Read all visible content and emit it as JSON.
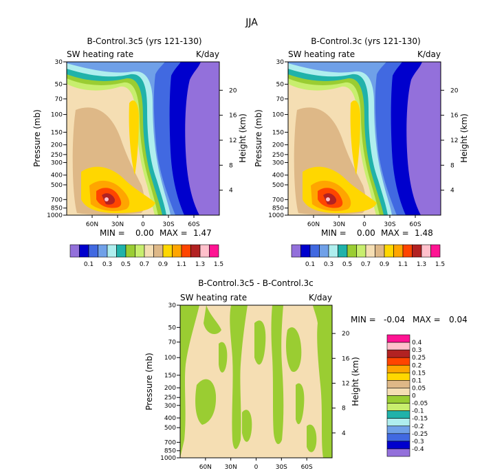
{
  "figure_title": "JJA",
  "chart_data": [
    {
      "type": "heatmap",
      "title": "B-Control.3c5 (yrs 121-130)",
      "left_label": "SW heating rate",
      "right_label": "K/day",
      "ylabel": "Pressure (mb)",
      "ylabel_right": "Height (km)",
      "x_ticks": [
        "60N",
        "30N",
        "0",
        "30S",
        "60S"
      ],
      "y_ticks": [
        "30",
        "50",
        "70",
        "100",
        "150",
        "200",
        "250",
        "300",
        "400",
        "500",
        "700",
        "850",
        "1000"
      ],
      "y_right_ticks": [
        "20",
        "16",
        "12",
        "8",
        "4"
      ],
      "min_label": "MIN =",
      "min_value": "0.00",
      "max_label": "MAX =",
      "max_value": "1.47",
      "colorbar_labels": [
        "0.1",
        "0.3",
        "0.5",
        "0.7",
        "0.9",
        "1.1",
        "1.3",
        "1.5"
      ]
    },
    {
      "type": "heatmap",
      "title": "B-Control.3c (yrs 121-130)",
      "left_label": "SW heating rate",
      "right_label": "K/day",
      "ylabel": "Pressure (mb)",
      "ylabel_right": "Height (km)",
      "x_ticks": [
        "60N",
        "30N",
        "0",
        "30S",
        "60S"
      ],
      "y_ticks": [
        "30",
        "50",
        "70",
        "100",
        "150",
        "200",
        "250",
        "300",
        "400",
        "500",
        "700",
        "850",
        "1000"
      ],
      "y_right_ticks": [
        "20",
        "16",
        "12",
        "8",
        "4"
      ],
      "min_label": "MIN =",
      "min_value": "0.00",
      "max_label": "MAX =",
      "max_value": "1.48",
      "colorbar_labels": [
        "0.1",
        "0.3",
        "0.5",
        "0.7",
        "0.9",
        "1.1",
        "1.3",
        "1.5"
      ]
    },
    {
      "type": "heatmap",
      "title": "B-Control.3c5 - B-Control.3c",
      "left_label": "SW heating rate",
      "right_label": "K/day",
      "ylabel": "Pressure (mb)",
      "ylabel_right": "Height (km)",
      "x_ticks": [
        "60N",
        "30N",
        "0",
        "30S",
        "60S"
      ],
      "y_ticks": [
        "30",
        "50",
        "70",
        "100",
        "150",
        "200",
        "250",
        "300",
        "400",
        "500",
        "700",
        "850",
        "1000"
      ],
      "y_right_ticks": [
        "20",
        "16",
        "12",
        "8",
        "4"
      ],
      "min_label": "MIN =",
      "min_value": "-0.04",
      "max_label": "MAX =",
      "max_value": "0.04",
      "colorbar_labels": [
        "0.4",
        "0.3",
        "0.25",
        "0.2",
        "0.15",
        "0.1",
        "0.05",
        "0",
        "-0.05",
        "-0.1",
        "-0.15",
        "-0.2",
        "-0.25",
        "-0.3",
        "-0.4"
      ]
    }
  ],
  "palettes": {
    "field": [
      "#9370db",
      "#0000cd",
      "#4169e1",
      "#6fa0e8",
      "#afeeee",
      "#20b2aa",
      "#9acd32",
      "#c8ee6e",
      "#f5deb3",
      "#deb887",
      "#ffd700",
      "#ffa500",
      "#ff4500",
      "#b22222",
      "#ffc0cb",
      "#ff1493"
    ],
    "diff": [
      "#ff1493",
      "#ffc0cb",
      "#b22222",
      "#ff4500",
      "#ffa500",
      "#ffd700",
      "#deb887",
      "#f5deb3",
      "#9acd32",
      "#c8ee6e",
      "#20b2aa",
      "#afeeee",
      "#6fa0e8",
      "#4169e1",
      "#0000cd",
      "#9370db"
    ]
  }
}
